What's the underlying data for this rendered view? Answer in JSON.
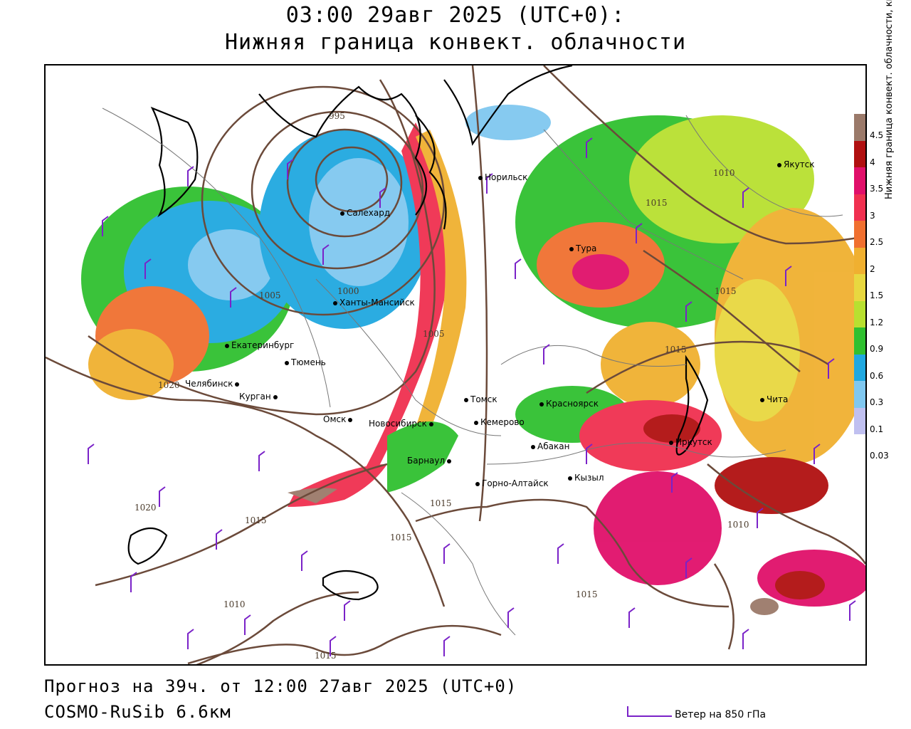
{
  "title": {
    "line1": "03:00 29авг 2025 (UTC+0):",
    "line2": "Нижняя граница конвект. облачности"
  },
  "footer": {
    "forecast": "Прогноз на 39ч. от 12:00 27авг 2025 (UTC+0)",
    "model": "COSMO-RuSib 6.6км",
    "wind_legend": "Ветер на 850 гПа"
  },
  "colorbar": {
    "axis_label": "Нижняя граница конвект. облачности, км",
    "levels": [
      "4.5",
      "4",
      "3.5",
      "3",
      "2.5",
      "2",
      "1.5",
      "1.2",
      "0.9",
      "0.6",
      "0.3",
      "0.1",
      "0.03"
    ],
    "colors": [
      "#9b7a6a",
      "#b01010",
      "#e0106a",
      "#f03050",
      "#f07030",
      "#f0b030",
      "#e8d840",
      "#b8e030",
      "#30c030",
      "#20a8e0",
      "#80c8f0",
      "#c0c0f0"
    ]
  },
  "cities": [
    {
      "name": "Норильск"
    },
    {
      "name": "Якутск"
    },
    {
      "name": "Салехард"
    },
    {
      "name": "Тура"
    },
    {
      "name": "Ханты-Мансийск"
    },
    {
      "name": "Екатеринбург"
    },
    {
      "name": "Тюмень"
    },
    {
      "name": "Челябинск"
    },
    {
      "name": "Курган"
    },
    {
      "name": "Омск"
    },
    {
      "name": "Новосибирск"
    },
    {
      "name": "Томск"
    },
    {
      "name": "Кемерово"
    },
    {
      "name": "Красноярск"
    },
    {
      "name": "Барнаул"
    },
    {
      "name": "Абакан"
    },
    {
      "name": "Кызыл"
    },
    {
      "name": "Горно-Алтайск"
    },
    {
      "name": "Иркутск"
    },
    {
      "name": "Чита"
    }
  ],
  "isobars": [
    "995",
    "1000",
    "1005",
    "1010",
    "1015",
    "1020",
    "1015",
    "1015",
    "1015",
    "1015",
    "1010",
    "1015",
    "1020",
    "1015",
    "1015",
    "1010",
    "1010",
    "1015"
  ]
}
